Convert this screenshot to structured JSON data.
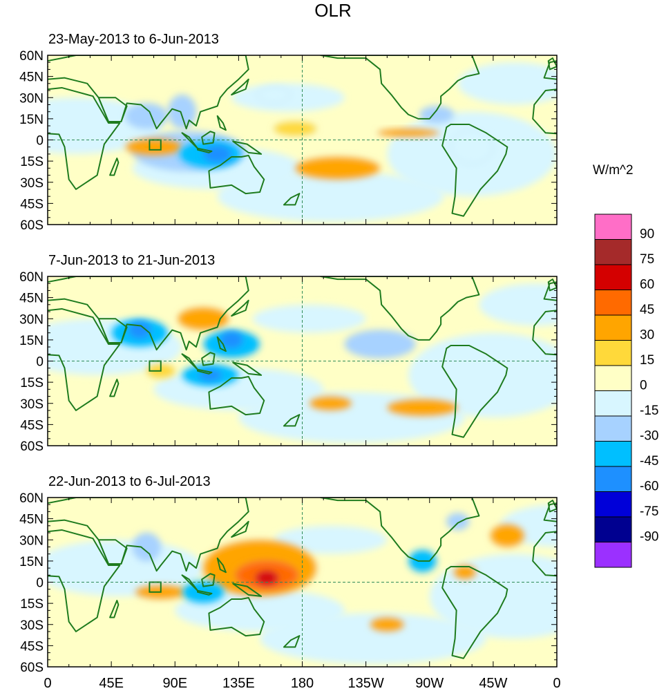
{
  "title": "OLR",
  "chart_data": {
    "type": "heatmap",
    "variable": "OLR anomaly",
    "units": "W/m^2",
    "colorbar": {
      "levels": [
        90,
        75,
        60,
        45,
        30,
        15,
        0,
        -15,
        -30,
        -45,
        -60,
        -75,
        -90
      ],
      "colors": [
        "#ff6ec7",
        "#a52a2a",
        "#d40000",
        "#ff6a00",
        "#ffa500",
        "#ffd93a",
        "#ffffc6",
        "#d8f6ff",
        "#a7d2ff",
        "#00bfff",
        "#1e90ff",
        "#0000d9",
        "#000090",
        "#9b30ff"
      ]
    },
    "lat_ticks": [
      "60N",
      "45N",
      "30N",
      "15N",
      "0",
      "15S",
      "30S",
      "45S",
      "60S"
    ],
    "lon_ticks": [
      "0",
      "45E",
      "90E",
      "135E",
      "180",
      "135W",
      "90W",
      "45W",
      "0"
    ],
    "lat_range": [
      -60,
      60
    ],
    "lon_range": [
      0,
      360
    ],
    "panels": [
      {
        "period": "23-May-2013 to 6-Jun-2013",
        "anomalies": [
          {
            "lon": 120,
            "lat": -10,
            "value": -60,
            "rx": 10,
            "ry": 6
          },
          {
            "lon": 115,
            "lat": -10,
            "value": -45,
            "rx": 22,
            "ry": 10
          },
          {
            "lon": 100,
            "lat": -8,
            "value": -30,
            "rx": 40,
            "ry": 14
          },
          {
            "lon": 70,
            "lat": 17,
            "value": -30,
            "rx": 15,
            "ry": 9
          },
          {
            "lon": 95,
            "lat": 20,
            "value": -30,
            "rx": 10,
            "ry": 12
          },
          {
            "lon": 75,
            "lat": -5,
            "value": 30,
            "rx": 20,
            "ry": 6
          },
          {
            "lon": 205,
            "lat": -20,
            "value": 30,
            "rx": 30,
            "ry": 8
          },
          {
            "lon": 255,
            "lat": 5,
            "value": 30,
            "rx": 22,
            "ry": 3
          },
          {
            "lon": 175,
            "lat": 8,
            "value": 15,
            "rx": 15,
            "ry": 5
          },
          {
            "lon": 275,
            "lat": 18,
            "value": -30,
            "rx": 12,
            "ry": 6
          },
          {
            "lon": 160,
            "lat": 32,
            "value": -15,
            "rx": 12,
            "ry": 6
          },
          {
            "lon": 300,
            "lat": -5,
            "value": -15,
            "rx": 15,
            "ry": 12
          }
        ]
      },
      {
        "period": "7-Jun-2013 to 21-Jun-2013",
        "anomalies": [
          {
            "lon": 65,
            "lat": 22,
            "value": -60,
            "rx": 8,
            "ry": 6
          },
          {
            "lon": 65,
            "lat": 20,
            "value": -45,
            "rx": 20,
            "ry": 10
          },
          {
            "lon": 130,
            "lat": 15,
            "value": -60,
            "rx": 8,
            "ry": 6
          },
          {
            "lon": 130,
            "lat": 12,
            "value": -45,
            "rx": 20,
            "ry": 10
          },
          {
            "lon": 115,
            "lat": -10,
            "value": -60,
            "rx": 8,
            "ry": 4
          },
          {
            "lon": 115,
            "lat": -10,
            "value": -45,
            "rx": 20,
            "ry": 8
          },
          {
            "lon": 110,
            "lat": 30,
            "value": 30,
            "rx": 18,
            "ry": 8
          },
          {
            "lon": 265,
            "lat": -33,
            "value": 30,
            "rx": 25,
            "ry": 6
          },
          {
            "lon": 200,
            "lat": -30,
            "value": 30,
            "rx": 15,
            "ry": 5
          },
          {
            "lon": 235,
            "lat": 12,
            "value": -30,
            "rx": 25,
            "ry": 10
          },
          {
            "lon": 80,
            "lat": -7,
            "value": 15,
            "rx": 10,
            "ry": 5
          }
        ]
      },
      {
        "period": "22-Jun-2013 to 6-Jul-2013",
        "anomalies": [
          {
            "lon": 155,
            "lat": 3,
            "value": 60,
            "rx": 8,
            "ry": 5
          },
          {
            "lon": 155,
            "lat": 5,
            "value": 45,
            "rx": 22,
            "ry": 10
          },
          {
            "lon": 150,
            "lat": 10,
            "value": 30,
            "rx": 40,
            "ry": 20
          },
          {
            "lon": 110,
            "lat": -7,
            "value": -45,
            "rx": 15,
            "ry": 8
          },
          {
            "lon": 265,
            "lat": 15,
            "value": -45,
            "rx": 10,
            "ry": 8
          },
          {
            "lon": 325,
            "lat": 33,
            "value": 30,
            "rx": 12,
            "ry": 8
          },
          {
            "lon": 290,
            "lat": 43,
            "value": -30,
            "rx": 8,
            "ry": 6
          },
          {
            "lon": 70,
            "lat": 25,
            "value": -30,
            "rx": 10,
            "ry": 10
          },
          {
            "lon": 295,
            "lat": 7,
            "value": 30,
            "rx": 8,
            "ry": 5
          },
          {
            "lon": 240,
            "lat": -30,
            "value": 30,
            "rx": 12,
            "ry": 5
          },
          {
            "lon": 80,
            "lat": -7,
            "value": 30,
            "rx": 18,
            "ry": 5
          }
        ]
      }
    ]
  }
}
